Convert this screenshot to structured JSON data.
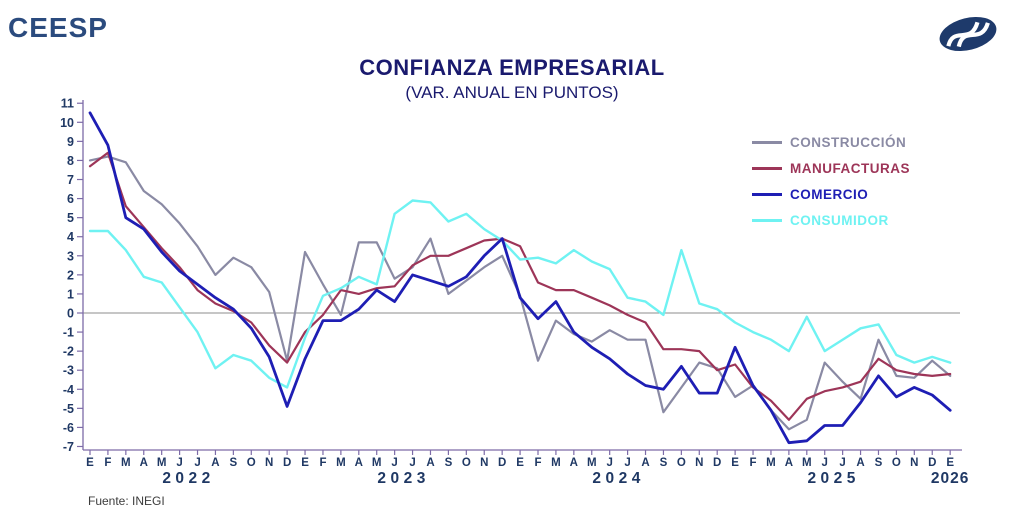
{
  "header": {
    "brand": "CEESP",
    "logo_icon": "ceesp-swoosh-logo",
    "brand_color": "#2B4B7E",
    "logo_color": "#1E3A6B"
  },
  "title": "CONFIANZA EMPRESARIAL",
  "subtitle": "(VAR. ANUAL EN PUNTOS)",
  "footer": {
    "source": "Fuente: INEGI"
  },
  "colors": {
    "title": "#1A1A6E",
    "axis_spine": "#7D6BA8",
    "axis_labels": "#1F3864",
    "zero_line": "#8C8C8C"
  },
  "chart_data": {
    "type": "line",
    "title": "CONFIANZA EMPRESARIAL",
    "subtitle": "(VAR. ANUAL EN PUNTOS)",
    "ylim": [
      -7,
      11
    ],
    "y_ticks": [
      11,
      10,
      9,
      8,
      7,
      6,
      5,
      4,
      3,
      2,
      1,
      0,
      -1,
      -2,
      -3,
      -4,
      -5,
      -6,
      -7
    ],
    "grid": "horizontal-zero-line-only",
    "legend_position": "top-right-inside",
    "x_month_labels": [
      "E",
      "F",
      "M",
      "A",
      "M",
      "J",
      "J",
      "A",
      "S",
      "O",
      "N",
      "D",
      "E",
      "F",
      "M",
      "A",
      "M",
      "J",
      "J",
      "A",
      "S",
      "O",
      "N",
      "D",
      "E",
      "F",
      "M",
      "A",
      "M",
      "J",
      "J",
      "A",
      "S",
      "O",
      "N",
      "D",
      "E",
      "F",
      "M",
      "A",
      "M",
      "J",
      "J",
      "A",
      "S",
      "O",
      "N",
      "D",
      "E"
    ],
    "years": [
      {
        "label": "2022",
        "center_index": 5.5,
        "spaced": true
      },
      {
        "label": "2023",
        "center_index": 17.5,
        "spaced": true
      },
      {
        "label": "2024",
        "center_index": 29.5,
        "spaced": true
      },
      {
        "label": "2025",
        "center_index": 41.5,
        "spaced": true
      },
      {
        "label": "2026",
        "center_index": 48,
        "spaced": false
      }
    ],
    "series": [
      {
        "name": "CONSTRUCCIÓN",
        "color": "#8A8AA4",
        "width": 2.2,
        "values": [
          8.0,
          8.2,
          7.9,
          6.4,
          5.7,
          4.7,
          3.5,
          2.0,
          2.9,
          2.4,
          1.1,
          -2.5,
          3.2,
          1.5,
          -0.1,
          3.7,
          3.7,
          1.8,
          2.4,
          3.9,
          1.0,
          1.7,
          2.4,
          3.0,
          0.9,
          -2.5,
          -0.4,
          -1.1,
          -1.5,
          -0.9,
          -1.4,
          -1.4,
          -5.2,
          -3.9,
          -2.6,
          -2.9,
          -4.4,
          -3.8,
          -5.1,
          -6.1,
          -5.6,
          -2.6,
          -3.6,
          -4.5,
          -1.4,
          -3.3,
          -3.4,
          -2.5,
          -3.3
        ]
      },
      {
        "name": "MANUFACTURAS",
        "color": "#9D3558",
        "width": 2.2,
        "values": [
          7.7,
          8.4,
          5.6,
          4.5,
          3.4,
          2.4,
          1.2,
          0.5,
          0.1,
          -0.5,
          -1.7,
          -2.6,
          -1.0,
          -0.1,
          1.2,
          1.0,
          1.3,
          1.4,
          2.5,
          3.0,
          3.0,
          3.4,
          3.8,
          3.9,
          3.5,
          1.6,
          1.2,
          1.2,
          0.8,
          0.4,
          -0.1,
          -0.5,
          -1.9,
          -1.9,
          -2.0,
          -3.0,
          -2.7,
          -3.9,
          -4.6,
          -5.6,
          -4.5,
          -4.1,
          -3.9,
          -3.6,
          -2.4,
          -3.0,
          -3.2,
          -3.3,
          -3.2
        ]
      },
      {
        "name": "COMERCIO",
        "color": "#1E1EB4",
        "width": 2.8,
        "values": [
          10.5,
          8.8,
          5.0,
          4.4,
          3.2,
          2.2,
          1.5,
          0.8,
          0.2,
          -0.8,
          -2.3,
          -4.9,
          -2.4,
          -0.4,
          -0.4,
          0.2,
          1.2,
          0.6,
          2.0,
          1.7,
          1.4,
          1.9,
          3.0,
          3.9,
          0.8,
          -0.3,
          0.6,
          -1.0,
          -1.8,
          -2.4,
          -3.2,
          -3.8,
          -4.0,
          -2.8,
          -4.2,
          -4.2,
          -1.8,
          -3.8,
          -5.1,
          -6.8,
          -6.7,
          -5.9,
          -5.9,
          -4.7,
          -3.3,
          -4.4,
          -3.9,
          -4.3,
          -5.1
        ]
      },
      {
        "name": "CONSUMIDOR",
        "color": "#6FF2F2",
        "width": 2.4,
        "values": [
          4.3,
          4.3,
          3.3,
          1.9,
          1.6,
          0.3,
          -1.0,
          -2.9,
          -2.2,
          -2.5,
          -3.4,
          -3.9,
          -1.3,
          0.9,
          1.3,
          1.9,
          1.5,
          5.2,
          5.9,
          5.8,
          4.8,
          5.2,
          4.4,
          3.8,
          2.8,
          2.9,
          2.6,
          3.3,
          2.7,
          2.3,
          0.8,
          0.6,
          -0.1,
          3.3,
          0.5,
          0.2,
          -0.5,
          -1.0,
          -1.4,
          -2.0,
          -0.2,
          -2.0,
          -1.4,
          -0.8,
          -0.6,
          -2.2,
          -2.6,
          -2.3,
          -2.6
        ]
      }
    ]
  }
}
